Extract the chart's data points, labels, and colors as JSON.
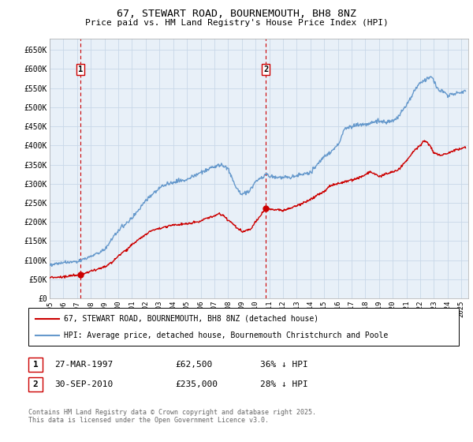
{
  "title": "67, STEWART ROAD, BOURNEMOUTH, BH8 8NZ",
  "subtitle": "Price paid vs. HM Land Registry's House Price Index (HPI)",
  "ylabel_ticks": [
    "£0",
    "£50K",
    "£100K",
    "£150K",
    "£200K",
    "£250K",
    "£300K",
    "£350K",
    "£400K",
    "£450K",
    "£500K",
    "£550K",
    "£600K",
    "£650K"
  ],
  "ytick_values": [
    0,
    50000,
    100000,
    150000,
    200000,
    250000,
    300000,
    350000,
    400000,
    450000,
    500000,
    550000,
    600000,
    650000
  ],
  "ylim": [
    0,
    680000
  ],
  "xlim_start": 1995.0,
  "xlim_end": 2025.5,
  "red_line_color": "#cc0000",
  "blue_line_color": "#6699cc",
  "grid_color": "#c8d8e8",
  "plot_bg_color": "#e8f0f8",
  "legend_label_red": "67, STEWART ROAD, BOURNEMOUTH, BH8 8NZ (detached house)",
  "legend_label_blue": "HPI: Average price, detached house, Bournemouth Christchurch and Poole",
  "sale1_x": 1997.23,
  "sale1_y": 62500,
  "sale1_label": "1",
  "sale1_date": "27-MAR-1997",
  "sale1_price": "£62,500",
  "sale1_note": "36% ↓ HPI",
  "sale2_x": 2010.75,
  "sale2_y": 235000,
  "sale2_label": "2",
  "sale2_date": "30-SEP-2010",
  "sale2_price": "£235,000",
  "sale2_note": "28% ↓ HPI",
  "footnote": "Contains HM Land Registry data © Crown copyright and database right 2025.\nThis data is licensed under the Open Government Licence v3.0.",
  "xticks": [
    1995,
    1996,
    1997,
    1998,
    1999,
    2000,
    2001,
    2002,
    2003,
    2004,
    2005,
    2006,
    2007,
    2008,
    2009,
    2010,
    2011,
    2012,
    2013,
    2014,
    2015,
    2016,
    2017,
    2018,
    2019,
    2020,
    2021,
    2022,
    2023,
    2024,
    2025
  ]
}
